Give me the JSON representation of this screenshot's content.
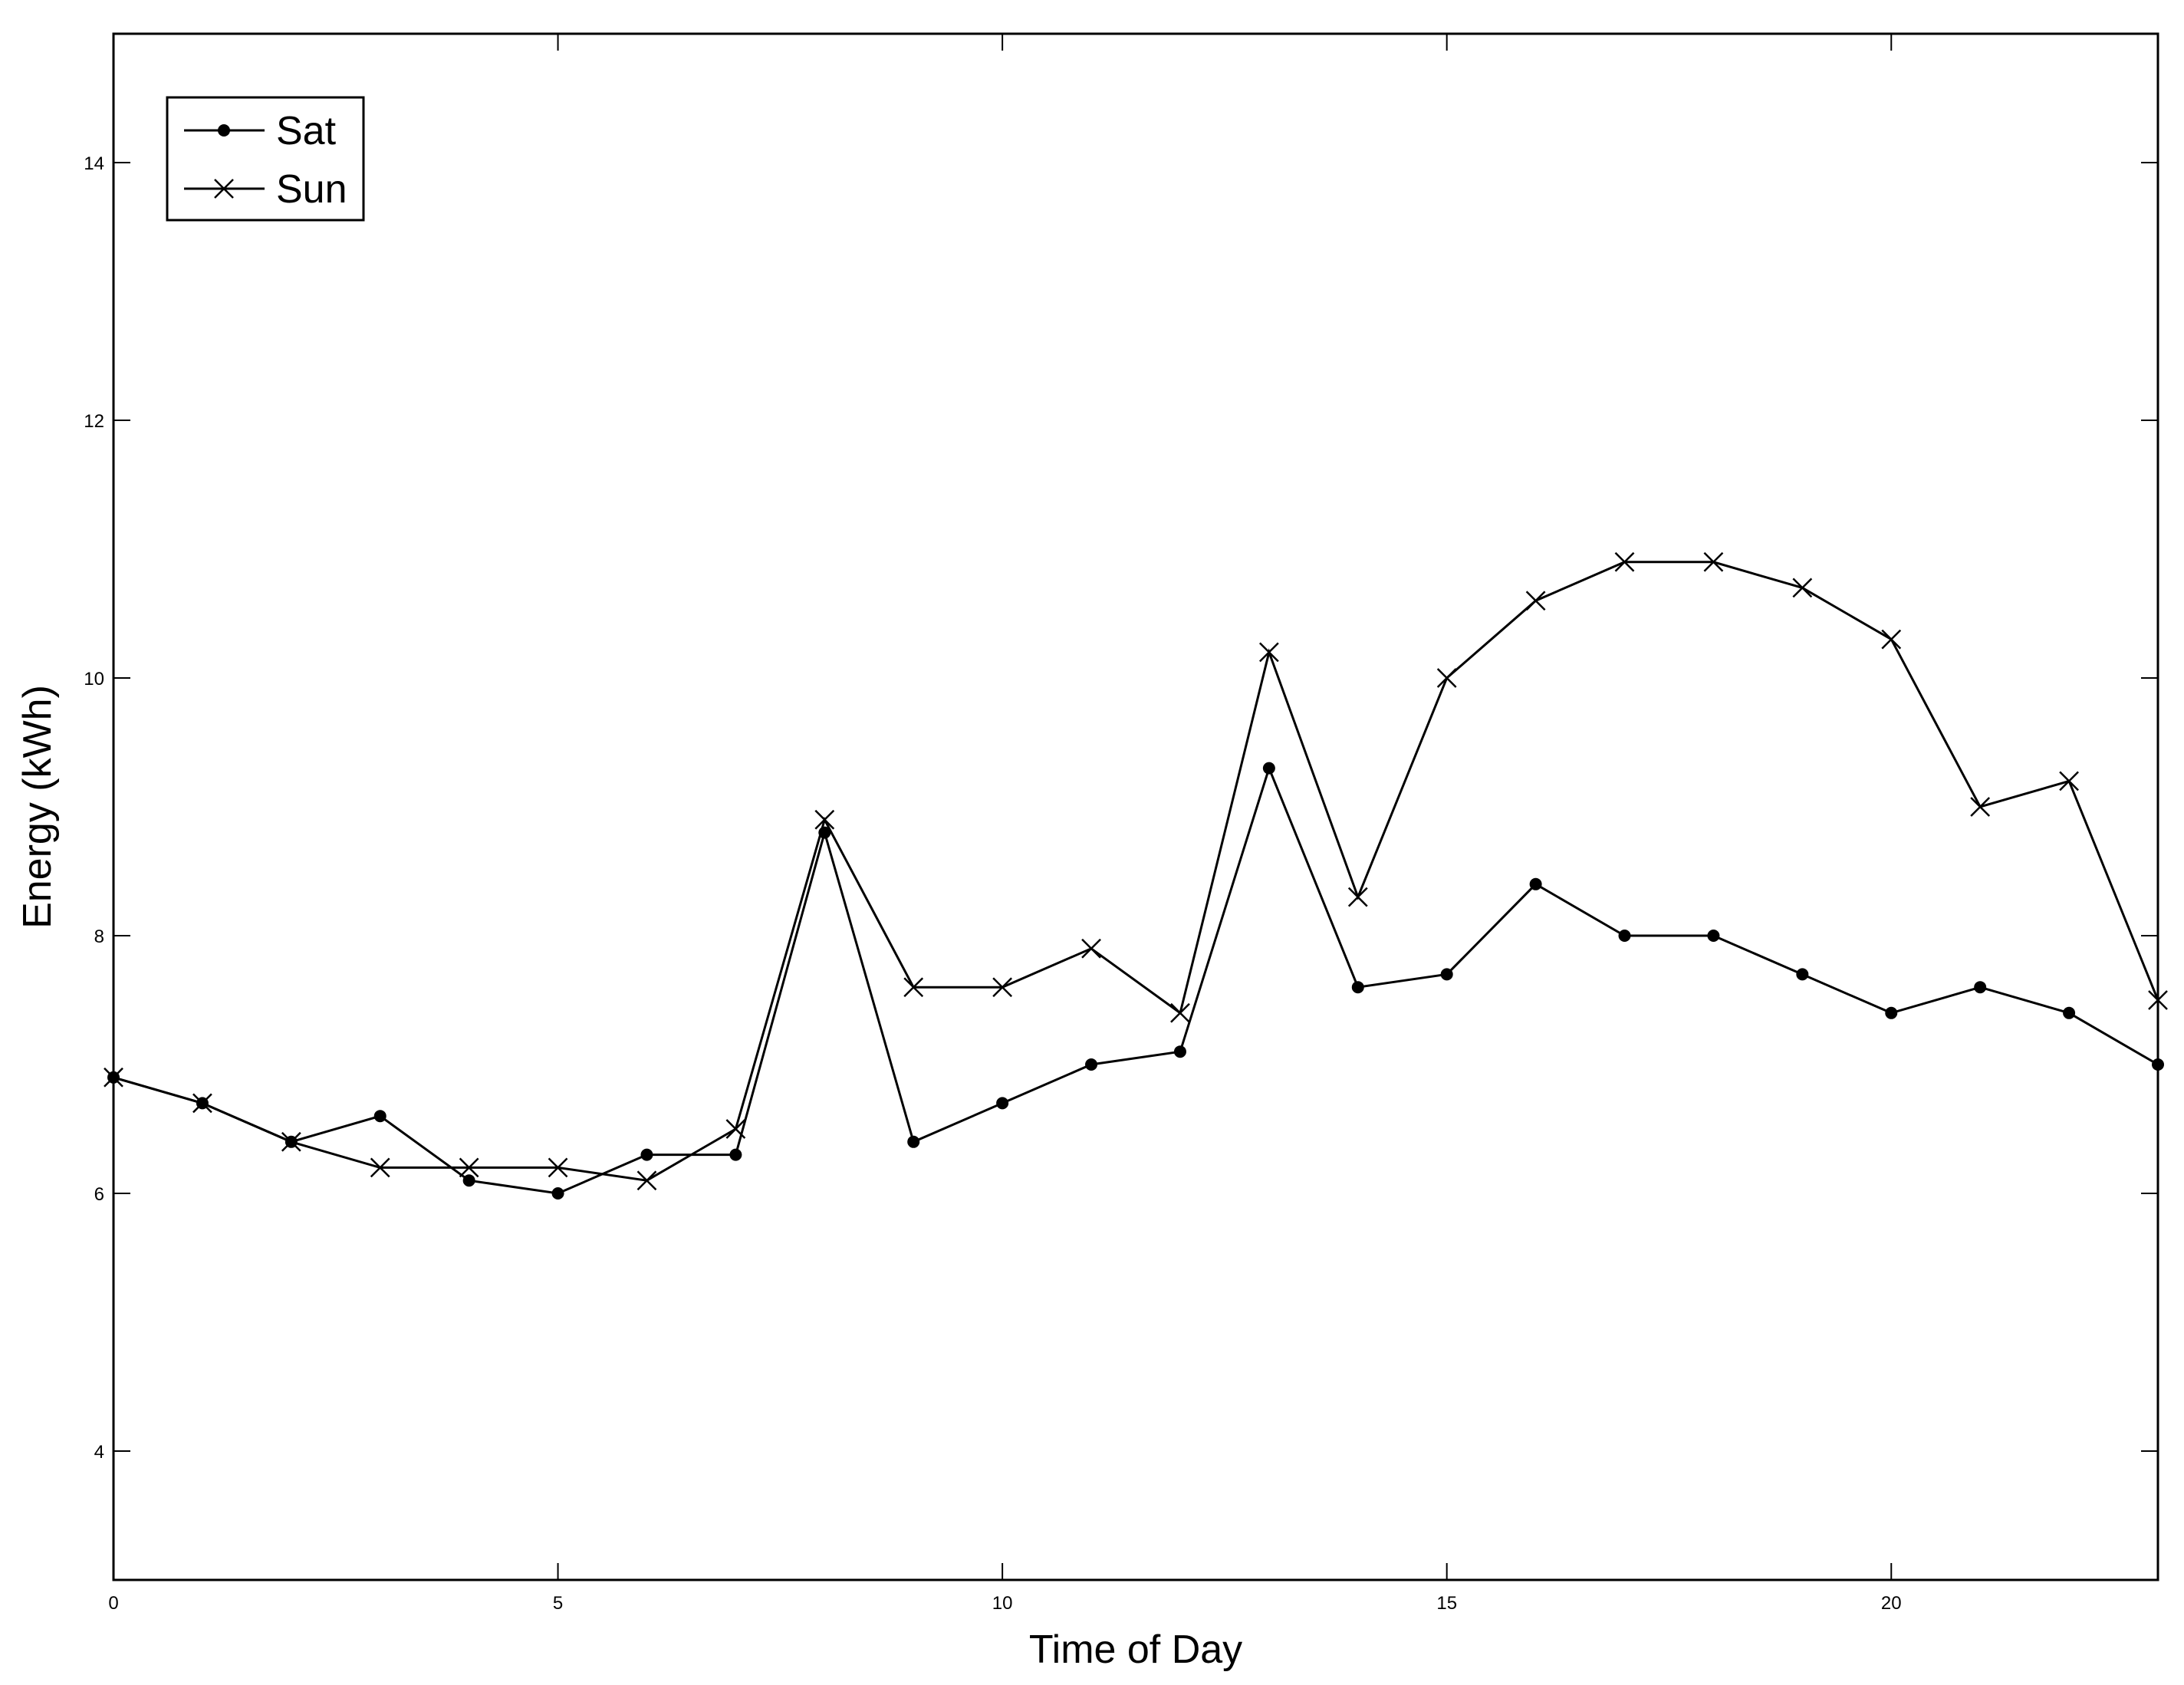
{
  "chart_data": {
    "type": "line",
    "xlabel": "Time of Day",
    "ylabel": "Energy (kWh)",
    "xlim": [
      0,
      23
    ],
    "ylim": [
      3,
      15
    ],
    "xticks": [
      0,
      5,
      10,
      15,
      20
    ],
    "yticks": [
      4,
      6,
      8,
      10,
      12,
      14
    ],
    "grid": false,
    "legend_position": "top-left",
    "x": [
      0,
      1,
      2,
      3,
      4,
      5,
      6,
      7,
      8,
      9,
      10,
      11,
      12,
      13,
      14,
      15,
      16,
      17,
      18,
      19,
      20,
      21,
      22,
      23
    ],
    "series": [
      {
        "name": "Sat",
        "marker": "dot",
        "color": "#000000",
        "values": [
          6.9,
          6.7,
          6.4,
          6.6,
          6.1,
          6.0,
          6.3,
          6.3,
          8.8,
          6.4,
          6.7,
          7.0,
          7.1,
          9.3,
          7.6,
          7.7,
          8.4,
          8.0,
          8.0,
          7.7,
          7.4,
          7.6,
          7.4,
          7.0
        ]
      },
      {
        "name": "Sun",
        "marker": "x",
        "color": "#000000",
        "values": [
          6.9,
          6.7,
          6.4,
          6.2,
          6.2,
          6.2,
          6.1,
          6.5,
          8.9,
          7.6,
          7.6,
          7.9,
          7.4,
          10.2,
          8.3,
          10.0,
          10.6,
          10.9,
          10.9,
          10.7,
          10.3,
          9.0,
          9.2,
          7.5
        ]
      }
    ]
  }
}
